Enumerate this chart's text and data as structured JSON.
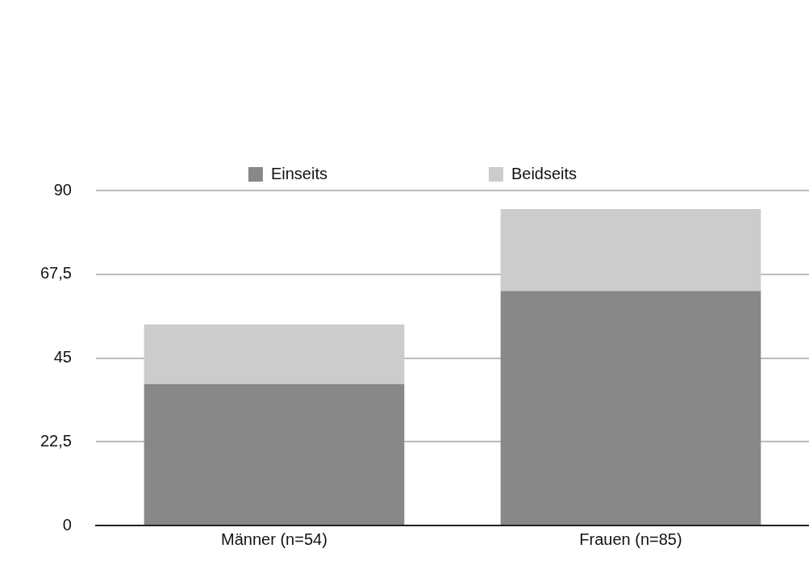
{
  "chart_data": {
    "type": "bar",
    "stacked": true,
    "categories": [
      "Männer (n=54)",
      "Frauen (n=85)"
    ],
    "series": [
      {
        "name": "Einseits",
        "color": "#888888",
        "values": [
          38,
          63
        ]
      },
      {
        "name": "Beidseits",
        "color": "#cccccc",
        "values": [
          16,
          22
        ]
      }
    ],
    "ylim": [
      0,
      90
    ],
    "yticks": [
      0,
      {
        "value": 22.5,
        "label": "22,5"
      },
      45,
      {
        "value": 67.5,
        "label": "67,5"
      },
      90
    ],
    "grid": "y",
    "legend": "top"
  }
}
